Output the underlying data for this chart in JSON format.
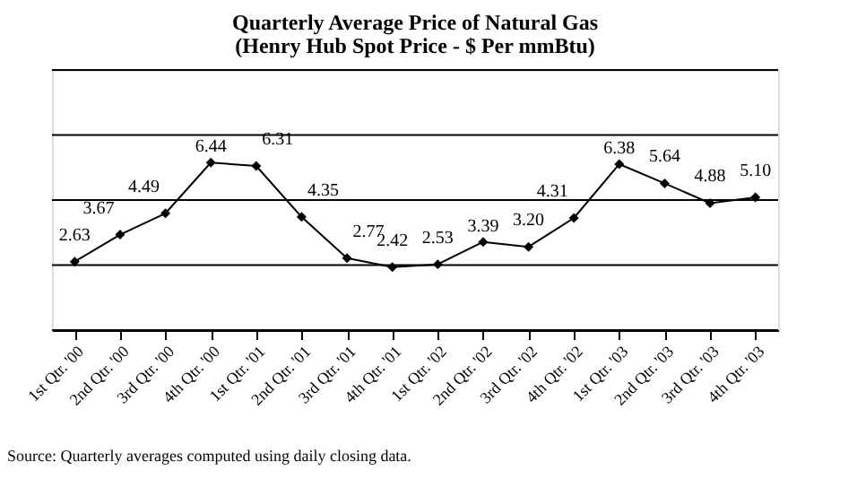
{
  "chart_data": {
    "type": "line",
    "title": "Quarterly Average Price of Natural Gas",
    "subtitle": "(Henry Hub Spot Price - $ Per mmBtu)",
    "categories": [
      "1st Qtr. '00",
      "2nd Qtr. '00",
      "3rd Qtr. '00",
      "4th Qtr. '00",
      "1st Qtr. '01",
      "2nd Qtr. '01",
      "3rd Qtr. '01",
      "4th Qtr. '01",
      "1st Qtr. '02",
      "2nd Qtr. '02",
      "3rd Qtr. '02",
      "4th Qtr. '02",
      "1st Qtr. '03",
      "2nd Qtr. '03",
      "3rd Qtr. '03",
      "4th Qtr. '03"
    ],
    "series": [
      {
        "color": "#000000",
        "values": [
          2.63,
          3.67,
          4.49,
          6.44,
          6.31,
          4.35,
          2.77,
          2.42,
          2.53,
          3.39,
          3.2,
          4.31,
          6.38,
          5.64,
          4.88,
          5.1
        ],
        "value_labels": [
          "2.63",
          "3.67",
          "4.49",
          "6.44",
          "6.31",
          "4.35",
          "2.77",
          "2.42",
          "2.53",
          "3.39",
          "3.20",
          "4.31",
          "6.38",
          "5.64",
          "4.88",
          "5.10"
        ]
      }
    ],
    "ylim": [
      0,
      10
    ],
    "yticks": [
      {
        "value": 0,
        "label": null
      },
      {
        "value": 2.5,
        "label": null
      },
      {
        "value": 5,
        "label": null
      },
      {
        "value": 7.5,
        "label": null
      },
      {
        "value": 10,
        "label": null
      }
    ],
    "tick_labels": "x",
    "grid": "y",
    "marker": "diamond",
    "line_style": "solid",
    "annotations": [
      "Source:  Quarterly averages computed using daily closing data."
    ]
  }
}
